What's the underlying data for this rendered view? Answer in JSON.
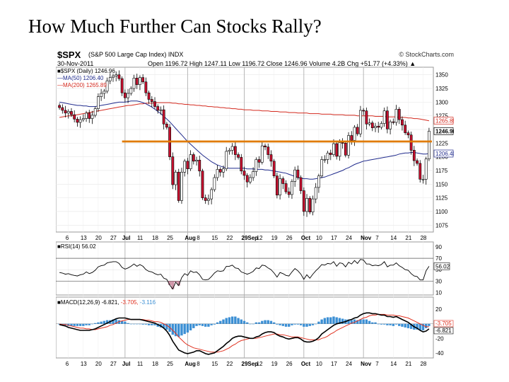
{
  "slide": {
    "title": "How Much Further Can Stocks Rally?"
  },
  "header": {
    "symbol": "$SPX",
    "description": "(S&P 500 Large Cap Index)  INDX",
    "source": "© StockCharts.com",
    "date": "30-Nov-2011",
    "ohlc_text": "Open 1196.72  High 1247.11  Low 1196.72  Close 1246.96  Volume 4.2B  Chg +51.77 (+4.33%) ▲"
  },
  "legend": {
    "price": "■$SPX (Daily) 1246.96",
    "ma50": "—MA(50) 1206.40",
    "ma200": "—MA(200) 1265.89",
    "rsi": "■RSI(14) 56.02",
    "macd_name": "■MACD(12,26,9) -6.821,",
    "macd_signal": "-3.705,",
    "macd_hist": "-3.116"
  },
  "price_tags": {
    "ma200": "1265.89",
    "close": "1246.96",
    "ma50": "1206.40"
  },
  "rsi_tag": "56.02",
  "macd_tags": [
    "-3.705",
    "-6.821"
  ],
  "colors": {
    "up": "#ffffff",
    "down": "#c8102e",
    "candle_edge": "#000000",
    "ma50": "#1f2a8c",
    "ma200": "#d42a1f",
    "trendline": "#e07b00",
    "macd": "#000000",
    "signal": "#e0301e",
    "histogram": "#3b8fd4"
  },
  "chart_data": [
    {
      "type": "candlestick",
      "title": "$SPX (Daily) 1246.96",
      "ylim": [
        1065,
        1360
      ],
      "yticks": [
        1075,
        1100,
        1125,
        1150,
        1175,
        1200,
        1225,
        1250,
        1275,
        1300,
        1325,
        1350
      ],
      "x_ticks": [
        "6",
        "13",
        "20",
        "27",
        "Jul",
        "11",
        "18",
        "25",
        "Aug",
        "8",
        "15",
        "22",
        "29Sep",
        "12",
        "19",
        "26",
        "Oct",
        "10",
        "17",
        "24",
        "Nov",
        "7",
        "14",
        "21",
        "28"
      ],
      "closes": [
        1290,
        1285,
        1280,
        1283,
        1277,
        1269,
        1263,
        1268,
        1270,
        1280,
        1270,
        1276,
        1288,
        1310,
        1316,
        1320,
        1339,
        1345,
        1348,
        1350,
        1343,
        1317,
        1308,
        1316,
        1325,
        1344,
        1332,
        1345,
        1337,
        1317,
        1305,
        1301,
        1292,
        1285,
        1286,
        1260,
        1254,
        1200,
        1149,
        1172,
        1120,
        1172,
        1192,
        1178,
        1204,
        1192,
        1194,
        1174,
        1125,
        1120,
        1123,
        1140,
        1162,
        1177,
        1172,
        1178,
        1210,
        1212,
        1219,
        1204,
        1199,
        1174,
        1166,
        1154,
        1162,
        1173,
        1195,
        1190,
        1220,
        1218,
        1204,
        1192,
        1165,
        1130,
        1160,
        1151,
        1136,
        1131,
        1155,
        1176,
        1162,
        1138,
        1100,
        1124,
        1099,
        1123,
        1144,
        1165,
        1195,
        1195,
        1207,
        1204,
        1224,
        1201,
        1226,
        1225,
        1203,
        1239,
        1230,
        1254,
        1242,
        1285,
        1284,
        1260,
        1262,
        1253,
        1256,
        1254,
        1261,
        1284,
        1251,
        1264,
        1263,
        1287,
        1268,
        1258,
        1244,
        1240,
        1212,
        1193,
        1188,
        1159,
        1159,
        1196,
        1247
      ],
      "ma50": [
        1300,
        1299,
        1298,
        1297,
        1296,
        1295,
        1294,
        1294,
        1293,
        1293,
        1292,
        1292,
        1292,
        1293,
        1294,
        1295,
        1296,
        1297,
        1298,
        1299,
        1300,
        1300,
        1300,
        1301,
        1302,
        1302,
        1302,
        1301,
        1299,
        1297,
        1294,
        1291,
        1287,
        1283,
        1279,
        1274,
        1269,
        1264,
        1258,
        1252,
        1246,
        1240,
        1234,
        1228,
        1223,
        1218,
        1213,
        1208,
        1203,
        1199,
        1195,
        1191,
        1188,
        1185,
        1183,
        1181,
        1180,
        1179,
        1179,
        1179,
        1179,
        1179,
        1179,
        1178,
        1178,
        1178,
        1177,
        1177,
        1177,
        1176,
        1176,
        1175,
        1174,
        1173,
        1172,
        1171,
        1170,
        1168,
        1166,
        1164,
        1162,
        1161,
        1160,
        1160,
        1159,
        1159,
        1160,
        1161,
        1162,
        1163,
        1165,
        1167,
        1169,
        1171,
        1173,
        1175,
        1178,
        1180,
        1183,
        1186,
        1188,
        1190,
        1192,
        1193,
        1194,
        1195,
        1196,
        1197,
        1198,
        1199,
        1200,
        1201,
        1202,
        1203,
        1205,
        1206,
        1207,
        1207,
        1208,
        1208,
        1207,
        1206,
        1205,
        1205,
        1206
      ],
      "ma200": [
        1272,
        1273,
        1274,
        1275,
        1275,
        1276,
        1277,
        1278,
        1279,
        1280,
        1281,
        1282,
        1283,
        1284,
        1285,
        1286,
        1287,
        1288,
        1289,
        1290,
        1291,
        1292,
        1293,
        1294,
        1294,
        1295,
        1296,
        1297,
        1297,
        1298,
        1298,
        1298,
        1299,
        1299,
        1299,
        1299,
        1299,
        1299,
        1298,
        1298,
        1297,
        1297,
        1296,
        1296,
        1295,
        1295,
        1294,
        1294,
        1293,
        1293,
        1292,
        1292,
        1291,
        1291,
        1290,
        1290,
        1289,
        1289,
        1288,
        1288,
        1287,
        1287,
        1286,
        1286,
        1286,
        1285,
        1285,
        1285,
        1284,
        1284,
        1284,
        1283,
        1283,
        1283,
        1282,
        1282,
        1282,
        1281,
        1281,
        1281,
        1280,
        1280,
        1280,
        1280,
        1279,
        1279,
        1279,
        1279,
        1278,
        1278,
        1278,
        1278,
        1277,
        1277,
        1277,
        1277,
        1276,
        1276,
        1276,
        1276,
        1275,
        1275,
        1275,
        1275,
        1275,
        1275,
        1274,
        1274,
        1274,
        1274,
        1273,
        1273,
        1273,
        1273,
        1272,
        1272,
        1272,
        1271,
        1271,
        1270,
        1270,
        1269,
        1268,
        1267,
        1266
      ],
      "trendline_level": 1228
    },
    {
      "type": "line",
      "title": "RSI(14) 56.02",
      "ylim": [
        8,
        95
      ],
      "yticks": [
        10,
        30,
        50,
        70,
        90
      ],
      "reference_levels": [
        30,
        70
      ],
      "values": [
        45,
        44,
        42,
        43,
        41,
        40,
        39,
        41,
        42,
        46,
        43,
        45,
        49,
        55,
        57,
        58,
        62,
        63,
        64,
        64,
        61,
        54,
        51,
        53,
        56,
        60,
        56,
        59,
        56,
        50,
        47,
        46,
        43,
        41,
        42,
        35,
        33,
        23,
        16,
        28,
        22,
        36,
        43,
        40,
        48,
        45,
        46,
        41,
        33,
        32,
        33,
        38,
        44,
        48,
        47,
        48,
        56,
        56,
        58,
        53,
        52,
        46,
        44,
        42,
        44,
        47,
        53,
        52,
        58,
        57,
        53,
        50,
        44,
        37,
        45,
        43,
        40,
        39,
        46,
        52,
        48,
        42,
        33,
        41,
        35,
        42,
        48,
        53,
        59,
        58,
        61,
        60,
        64,
        56,
        62,
        61,
        55,
        63,
        60,
        66,
        61,
        68,
        67,
        60,
        60,
        57,
        58,
        57,
        59,
        64,
        55,
        58,
        58,
        62,
        57,
        54,
        50,
        49,
        43,
        39,
        38,
        32,
        32,
        48,
        56
      ]
    },
    {
      "type": "line+bar",
      "title": "MACD(12,26,9) -6.821, -3.705, -3.116",
      "ylim": [
        -45,
        27
      ],
      "yticks": [
        -40,
        -20,
        0,
        20
      ],
      "macd": [
        -1,
        -2,
        -3,
        -5,
        -6,
        -7,
        -8,
        -9,
        -9,
        -9,
        -9,
        -8,
        -7,
        -5,
        -3,
        -1,
        1,
        3,
        5,
        7,
        8,
        8,
        8,
        7,
        6,
        6,
        6,
        6,
        5,
        4,
        3,
        2,
        1,
        -1,
        -3,
        -6,
        -10,
        -16,
        -24,
        -30,
        -36,
        -38,
        -40,
        -41,
        -40,
        -39,
        -37,
        -37,
        -39,
        -41,
        -42,
        -41,
        -40,
        -37,
        -34,
        -31,
        -27,
        -24,
        -20,
        -18,
        -17,
        -17,
        -18,
        -19,
        -20,
        -20,
        -18,
        -17,
        -14,
        -12,
        -11,
        -11,
        -12,
        -15,
        -17,
        -18,
        -20,
        -21,
        -20,
        -19,
        -19,
        -21,
        -24,
        -25,
        -25,
        -24,
        -22,
        -19,
        -14,
        -11,
        -8,
        -5,
        -2,
        0,
        1,
        2,
        3,
        5,
        6,
        8,
        9,
        12,
        14,
        15,
        15,
        14,
        14,
        13,
        12,
        12,
        10,
        10,
        9,
        10,
        8,
        6,
        4,
        2,
        -1,
        -4,
        -6,
        -9,
        -11,
        -10,
        -7
      ],
      "signal": [
        0,
        -1,
        -1,
        -2,
        -3,
        -4,
        -5,
        -6,
        -6,
        -7,
        -7,
        -8,
        -8,
        -7,
        -6,
        -5,
        -4,
        -2,
        -1,
        1,
        3,
        4,
        5,
        6,
        6,
        6,
        6,
        6,
        6,
        5,
        5,
        4,
        3,
        3,
        2,
        0,
        -2,
        -5,
        -9,
        -13,
        -18,
        -22,
        -26,
        -29,
        -31,
        -33,
        -34,
        -35,
        -36,
        -37,
        -38,
        -39,
        -39,
        -39,
        -38,
        -37,
        -35,
        -33,
        -30,
        -28,
        -25,
        -23,
        -22,
        -21,
        -20,
        -20,
        -20,
        -19,
        -18,
        -17,
        -16,
        -15,
        -14,
        -14,
        -15,
        -15,
        -16,
        -17,
        -18,
        -18,
        -18,
        -19,
        -20,
        -21,
        -22,
        -22,
        -22,
        -22,
        -20,
        -19,
        -17,
        -14,
        -12,
        -9,
        -7,
        -5,
        -3,
        -1,
        1,
        2,
        4,
        6,
        8,
        9,
        11,
        12,
        12,
        13,
        13,
        13,
        12,
        12,
        12,
        11,
        11,
        10,
        9,
        8,
        6,
        4,
        2,
        0,
        -2,
        -4,
        -4
      ]
    }
  ]
}
